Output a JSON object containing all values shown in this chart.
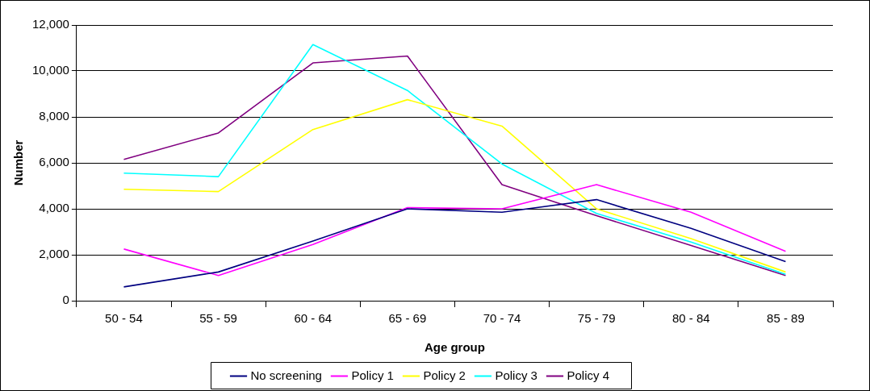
{
  "chart_data": {
    "type": "line",
    "xlabel": "Age group",
    "ylabel": "Number",
    "categories": [
      "50 - 54",
      "55 - 59",
      "60 - 64",
      "65 - 69",
      "70 - 74",
      "75 - 79",
      "80 - 84",
      "85 - 89"
    ],
    "series": [
      {
        "name": "No screening",
        "color": "#000080",
        "values": [
          600,
          1250,
          2600,
          4000,
          3850,
          4400,
          3150,
          1700
        ]
      },
      {
        "name": "Policy 1",
        "color": "#ff00ff",
        "values": [
          2250,
          1100,
          2450,
          4050,
          4000,
          5050,
          3850,
          2150
        ]
      },
      {
        "name": "Policy 2",
        "color": "#ffff00",
        "values": [
          4850,
          4750,
          7450,
          8750,
          7600,
          4000,
          2700,
          1250
        ]
      },
      {
        "name": "Policy 3",
        "color": "#00ffff",
        "values": [
          5550,
          5400,
          11150,
          9150,
          5950,
          3800,
          2550,
          1150
        ]
      },
      {
        "name": "Policy 4",
        "color": "#800080",
        "values": [
          6150,
          7300,
          10350,
          10650,
          5050,
          3700,
          2400,
          1100
        ]
      }
    ],
    "ylim": [
      0,
      12000
    ],
    "yticks": [
      {
        "value": 0,
        "label": "0"
      },
      {
        "value": 2000,
        "label": "2,000"
      },
      {
        "value": 4000,
        "label": "4,000"
      },
      {
        "value": 6000,
        "label": "6,000"
      },
      {
        "value": 8000,
        "label": "8,000"
      },
      {
        "value": 10000,
        "label": "10,000"
      },
      {
        "value": 12000,
        "label": "12,000"
      }
    ],
    "grid": "y",
    "legend": "bottom",
    "marker": "none",
    "line_style": "solid"
  }
}
